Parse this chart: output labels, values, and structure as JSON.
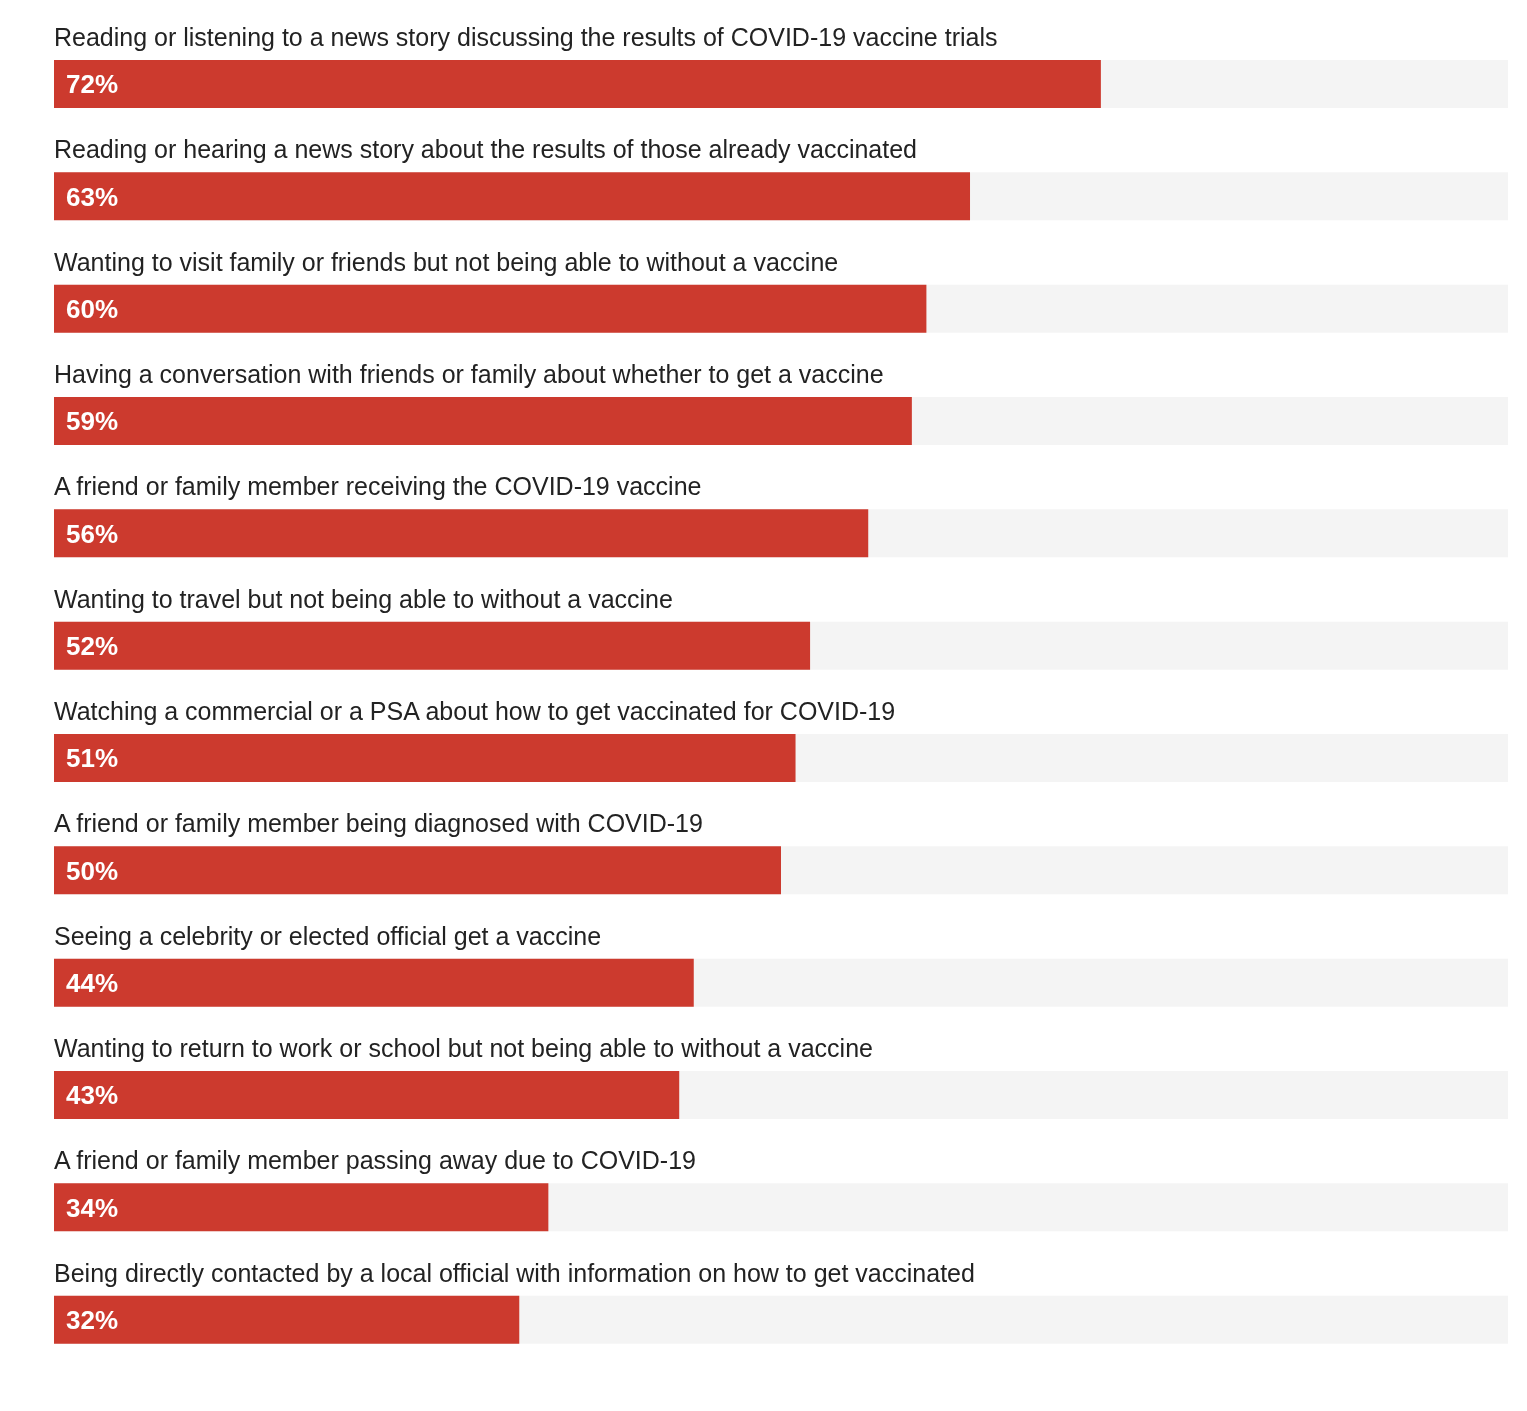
{
  "chart_data": {
    "type": "bar",
    "orientation": "horizontal",
    "categories": [
      "Reading or listening to a news story discussing the results of COVID-19 vaccine trials",
      "Reading or hearing a news story about the results of those already vaccinated",
      "Wanting to visit family or friends but not being able to without a vaccine",
      "Having a conversation with friends or family about whether to get a vaccine",
      "A friend or family member receiving the COVID-19 vaccine",
      "Wanting to travel but not being able to without a vaccine",
      "Watching a commercial or a PSA about how to get vaccinated for COVID-19",
      "A friend or family member being diagnosed with COVID-19",
      "Seeing a celebrity or elected official get a vaccine",
      "Wanting to return to work or school but not being able to without a vaccine",
      "A friend or family member passing away due to COVID-19",
      "Being directly contacted by a local official with information on how to get vaccinated"
    ],
    "values": [
      72,
      63,
      60,
      59,
      56,
      52,
      51,
      50,
      44,
      43,
      34,
      32
    ],
    "value_labels": [
      "72%",
      "63%",
      "60%",
      "59%",
      "56%",
      "52%",
      "51%",
      "50%",
      "44%",
      "43%",
      "34%",
      "32%"
    ],
    "color": "#cc3a2e",
    "xlim": [
      0,
      100
    ],
    "tick_labels": false
  }
}
